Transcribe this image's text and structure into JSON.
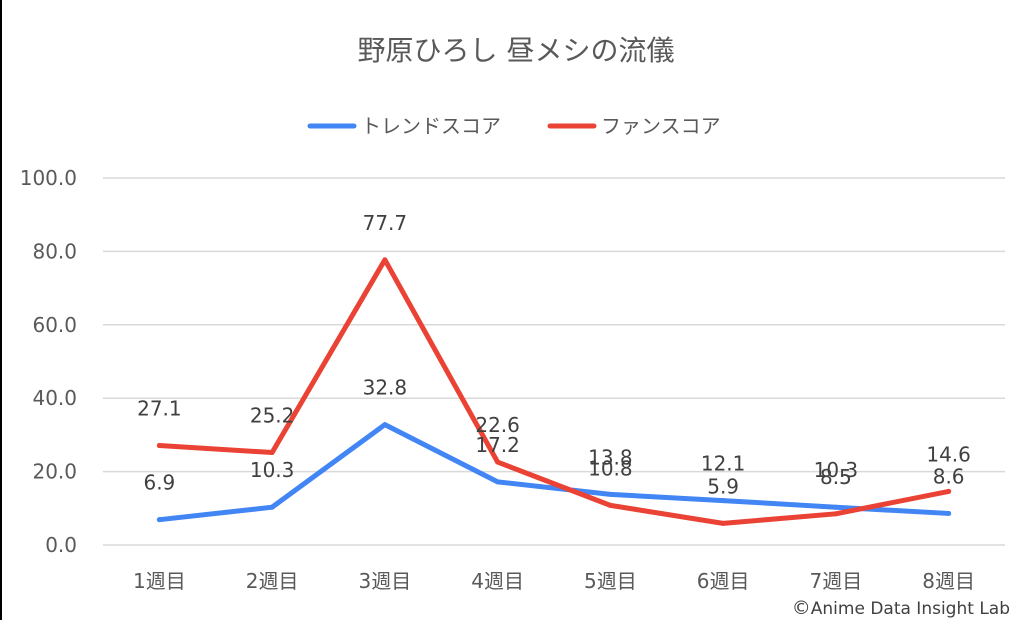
{
  "chart_data": {
    "type": "line",
    "title": "野原ひろし 昼メシの流儀",
    "categories": [
      "1週目",
      "2週目",
      "3週目",
      "4週目",
      "5週目",
      "6週目",
      "7週目",
      "8週目"
    ],
    "series": [
      {
        "name": "トレンドスコア",
        "color": "#4285F4",
        "values": [
          6.9,
          10.3,
          32.8,
          17.2,
          13.8,
          12.1,
          10.3,
          8.6
        ]
      },
      {
        "name": "ファンスコア",
        "color": "#EA4335",
        "values": [
          27.1,
          25.2,
          77.7,
          22.6,
          10.8,
          5.9,
          8.5,
          14.6
        ]
      }
    ],
    "ylim": [
      0,
      100
    ],
    "yticks": [
      "0.0",
      "20.0",
      "40.0",
      "60.0",
      "80.0",
      "100.0"
    ],
    "ytick_values": [
      0,
      20,
      40,
      60,
      80,
      100
    ],
    "grid": true,
    "legend": "top-center",
    "xlabel": "",
    "ylabel": ""
  },
  "copyright": "Anime Data Insight Lab",
  "copyright_symbol": "©"
}
